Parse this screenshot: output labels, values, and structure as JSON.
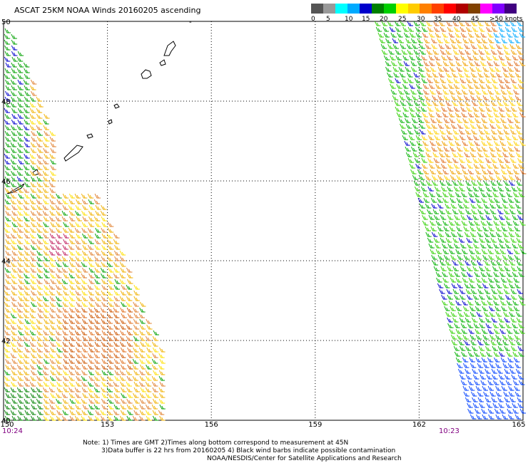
{
  "title": "ASCAT 25KM NOAA Winds 20160205 ascending",
  "legend": {
    "unit_label": "knots",
    "colors": [
      "#555555",
      "#999999",
      "#00ffff",
      "#00aaff",
      "#0000cc",
      "#008000",
      "#00d000",
      "#ffff00",
      "#ffcc00",
      "#ff8000",
      "#ff4000",
      "#ff0000",
      "#b00000",
      "#804000",
      "#ff00ff",
      "#8000ff",
      "#400080"
    ],
    "ticks": [
      "0",
      "5",
      "10",
      "15",
      "20",
      "25",
      "30",
      "35",
      "40",
      "45",
      ">50 knots"
    ]
  },
  "axes": {
    "lat_labels": [
      "50",
      "48",
      "46",
      "44",
      "42",
      "40"
    ],
    "lon_labels": [
      "150",
      "153",
      "156",
      "159",
      "162",
      "165"
    ]
  },
  "times": {
    "left": "10:24",
    "right": "10:23"
  },
  "notes": {
    "line1": "Note: 1) Times are GMT 2)Times along bottom correspond to measurement at 45N",
    "line2": "3)Data buffer is 22 hrs from 20160205 4) Black wind barbs indicate possible contamination",
    "line3": "NOAA/NESDIS/Center for Satellite Applications and Research"
  },
  "symbols": {
    "tick_mark": "-"
  }
}
